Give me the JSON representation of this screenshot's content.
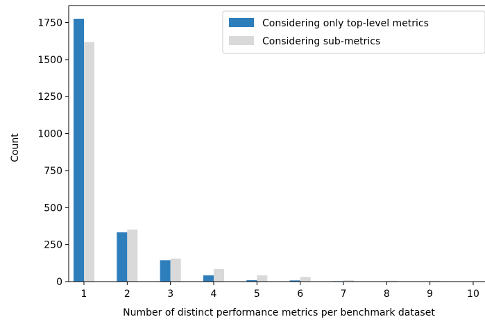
{
  "chart_data": {
    "type": "bar",
    "title": "",
    "xlabel": "Number of distinct performance metrics per benchmark dataset",
    "ylabel": "Count",
    "categories": [
      "1",
      "2",
      "3",
      "4",
      "5",
      "6",
      "7",
      "8",
      "9",
      "10"
    ],
    "series": [
      {
        "name": "Considering only top-level metrics",
        "color": "#2e7ebc",
        "values": [
          1776,
          333,
          144,
          42,
          10,
          8,
          3,
          2,
          2,
          1
        ]
      },
      {
        "name": "Considering sub-metrics",
        "color": "#d9d9d9",
        "values": [
          1618,
          352,
          156,
          85,
          42,
          32,
          9,
          6,
          6,
          3
        ]
      }
    ],
    "ylim": [
      0,
      1865
    ],
    "yticks": [
      0,
      250,
      500,
      750,
      1000,
      1250,
      1500,
      1750
    ],
    "grid": false,
    "legend_position": "top-right"
  }
}
